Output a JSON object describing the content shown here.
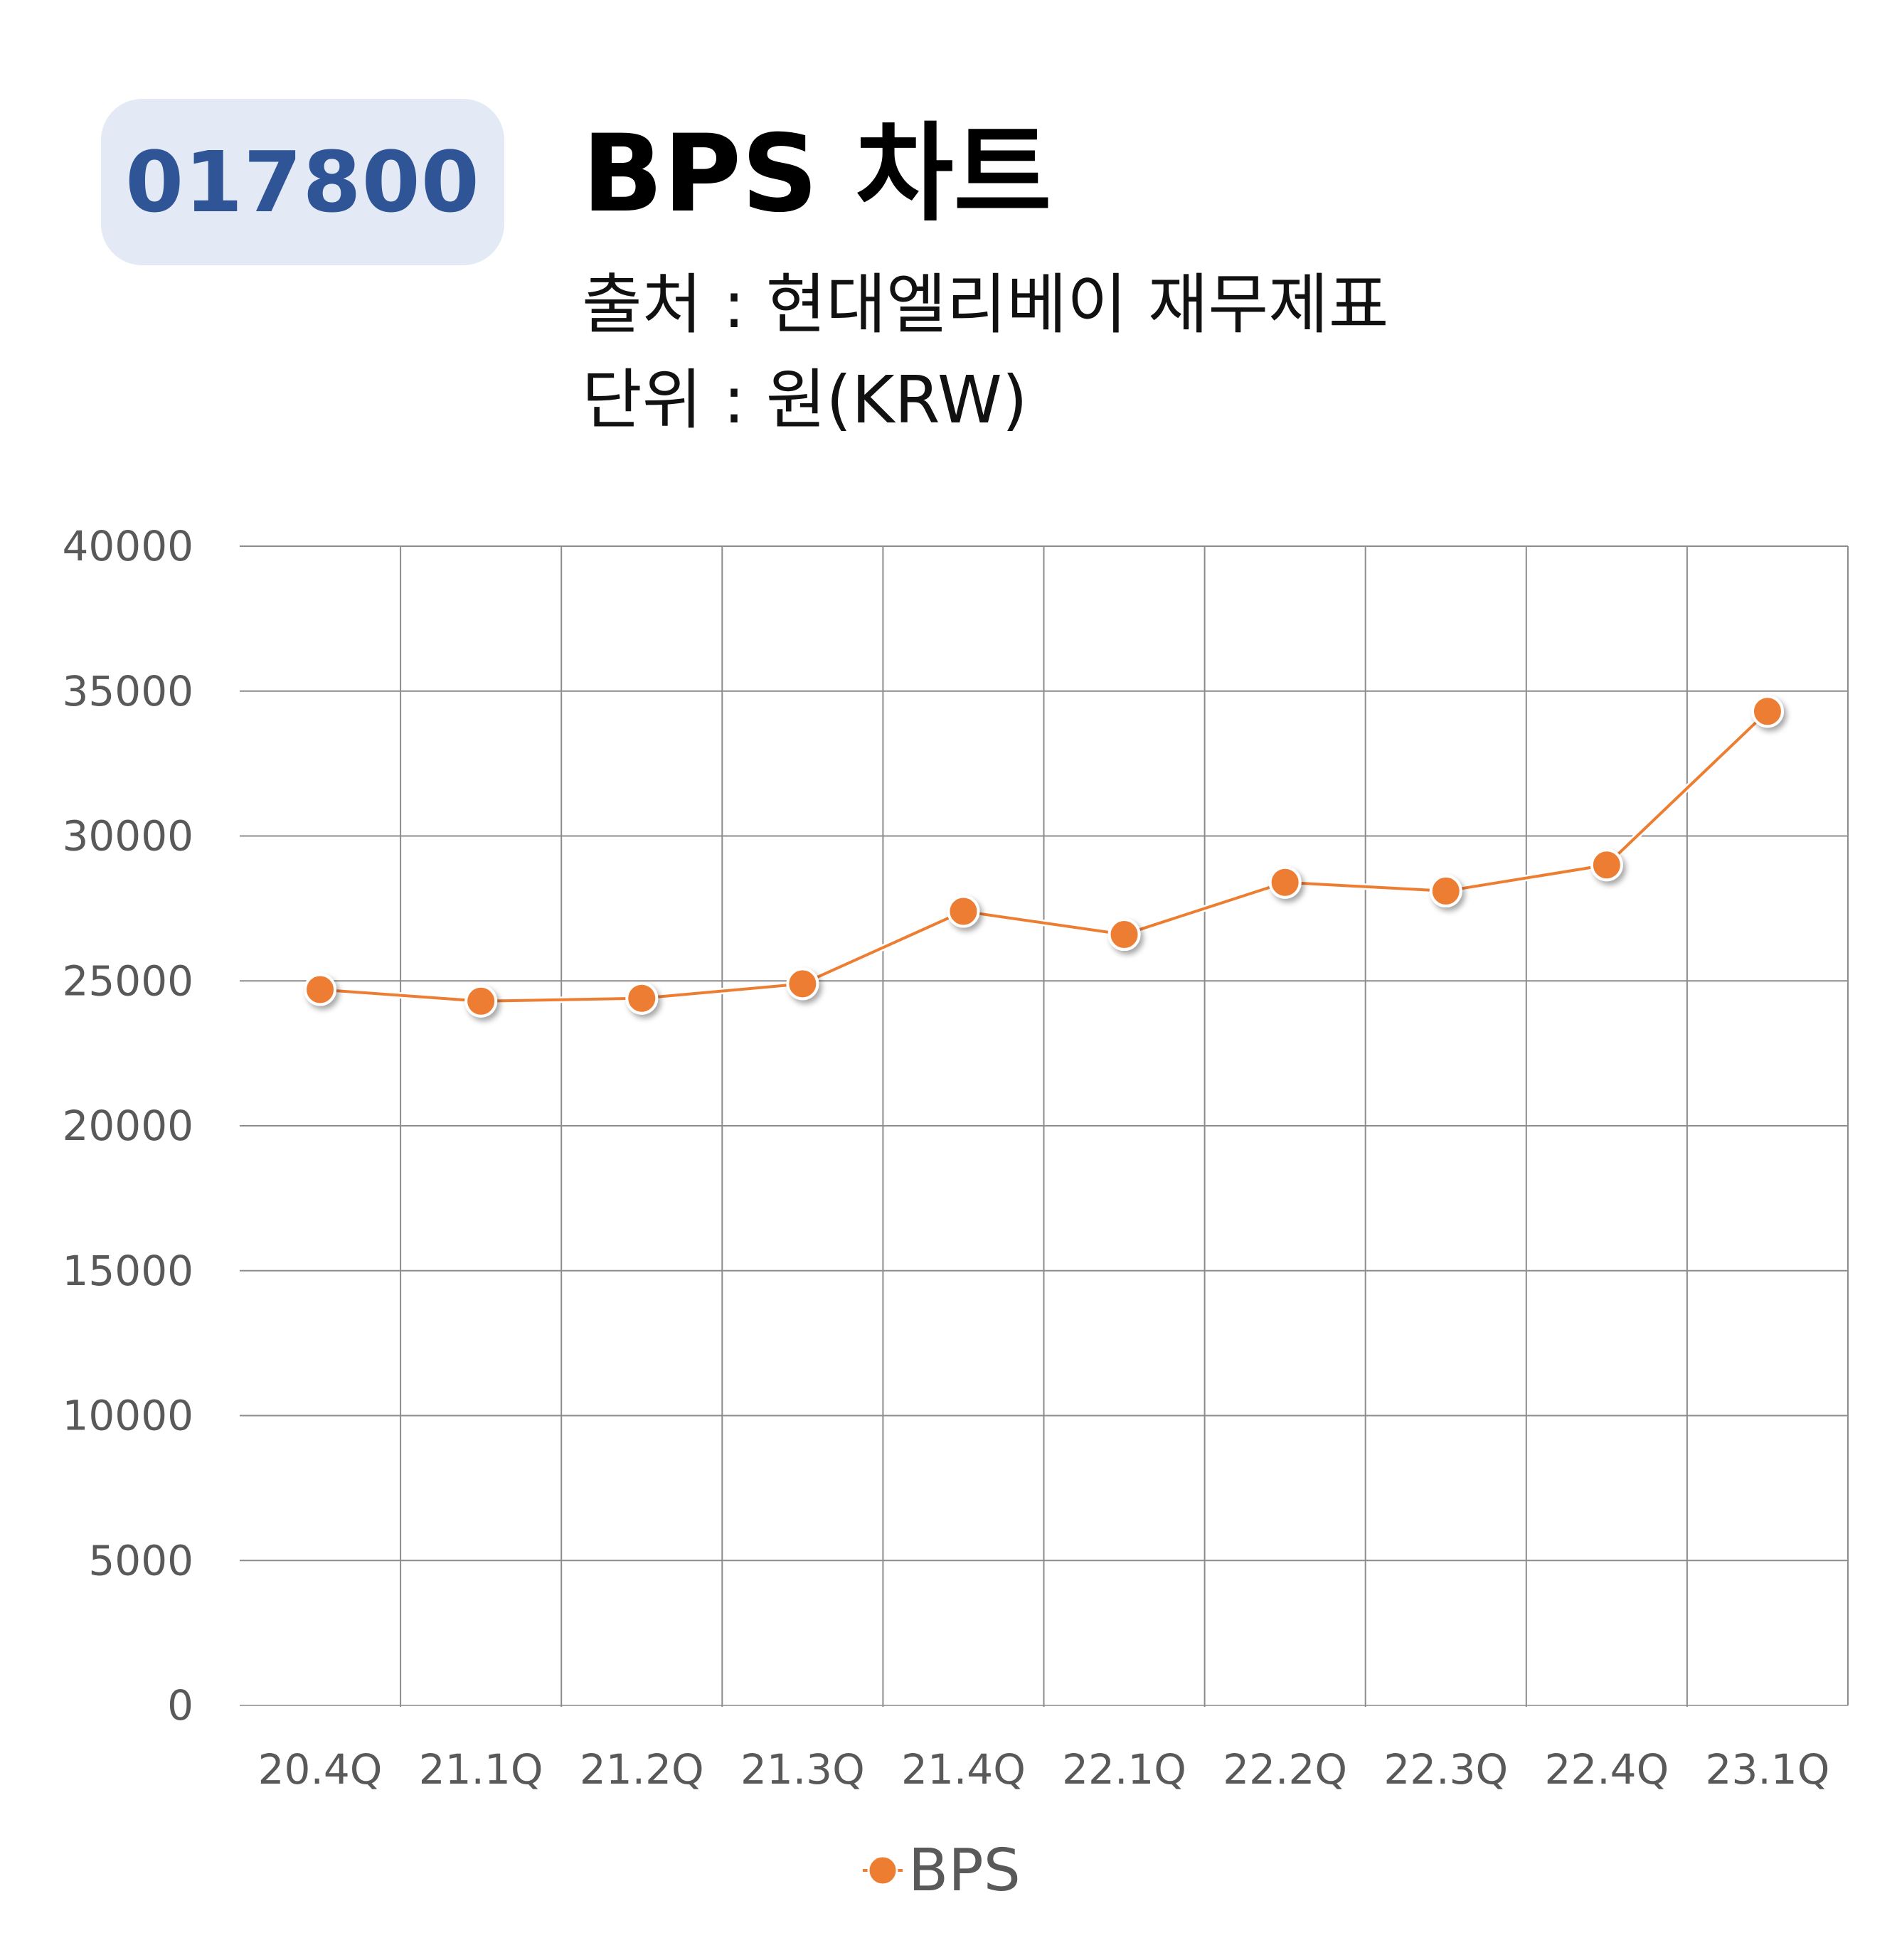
{
  "badge": {
    "ticker": "017800"
  },
  "header": {
    "title": "BPS 차트",
    "source": "출처 : 현대엘리베이 재무제표",
    "unit": "단위 : 원(KRW)"
  },
  "colors": {
    "badge_bg": "#e3e9f5",
    "badge_text": "#2f5597",
    "series": "#ed7d31",
    "grid": "#8c8c8c"
  },
  "chart_data": {
    "type": "line",
    "categories": [
      "20.4Q",
      "21.1Q",
      "21.2Q",
      "21.3Q",
      "21.4Q",
      "22.1Q",
      "22.2Q",
      "22.3Q",
      "22.4Q",
      "23.1Q"
    ],
    "series": [
      {
        "name": "BPS",
        "values": [
          24700,
          24300,
          24400,
          24900,
          27400,
          26600,
          28400,
          28100,
          29000,
          34300
        ]
      }
    ],
    "y_ticks": [
      "0",
      "5000",
      "10000",
      "15000",
      "20000",
      "25000",
      "30000",
      "35000",
      "40000"
    ],
    "ylim": [
      0,
      40000
    ],
    "grid": true,
    "legend": "bottom"
  }
}
